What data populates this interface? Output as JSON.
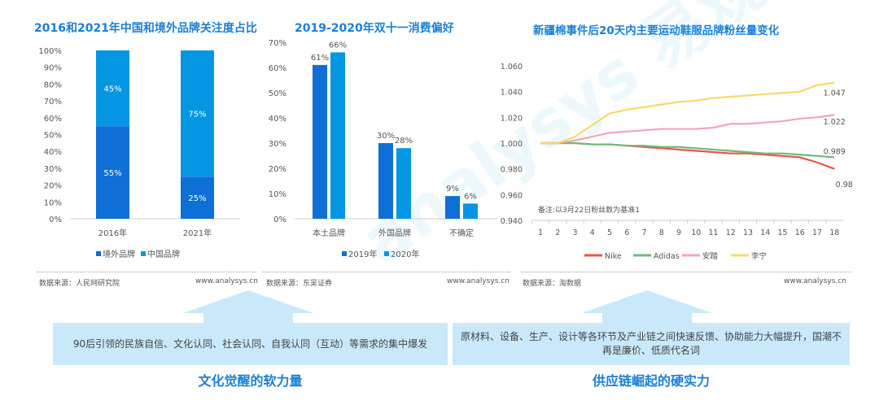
{
  "chart_data": [
    {
      "type": "bar",
      "stacked": true,
      "title": "2016和2021年中国和境外品牌关注度占比",
      "categories": [
        "2016年",
        "2021年"
      ],
      "series": [
        {
          "name": "境外品牌",
          "values": [
            55,
            25
          ],
          "color": "#0e6fd6"
        },
        {
          "name": "中国品牌",
          "values": [
            45,
            75
          ],
          "color": "#0496e2"
        }
      ],
      "yticks": [
        "0%",
        "10%",
        "20%",
        "30%",
        "40%",
        "50%",
        "60%",
        "70%",
        "80%",
        "90%",
        "100%"
      ],
      "ylim": [
        0,
        100
      ],
      "legend": "bottom",
      "data_labels": [
        [
          "55%",
          "25%"
        ],
        [
          "45%",
          "75%"
        ]
      ]
    },
    {
      "type": "bar",
      "title": "2019-2020年双十一消费偏好",
      "categories": [
        "本土品牌",
        "外国品牌",
        "不确定"
      ],
      "series": [
        {
          "name": "2019年",
          "values": [
            61,
            30,
            9
          ],
          "color": "#0e6fd6"
        },
        {
          "name": "2020年",
          "values": [
            66,
            28,
            6
          ],
          "color": "#0496e2"
        }
      ],
      "yticks": [
        "0%",
        "10%",
        "20%",
        "30%",
        "40%",
        "50%",
        "60%",
        "70%"
      ],
      "ylim": [
        0,
        70
      ],
      "legend": "bottom",
      "data_labels": [
        [
          "61%",
          "30%",
          "9%"
        ],
        [
          "66%",
          "28%",
          "6%"
        ]
      ]
    },
    {
      "type": "line",
      "title": "新疆棉事件后20天内主要运动鞋服品牌粉丝量变化",
      "x": [
        1,
        2,
        3,
        4,
        5,
        6,
        7,
        8,
        9,
        10,
        11,
        12,
        13,
        14,
        15,
        16,
        17,
        18
      ],
      "yticks": [
        "0.940",
        "0.960",
        "0.980",
        "1.000",
        "1.020",
        "1.040",
        "1.060"
      ],
      "ylim": [
        0.94,
        1.06
      ],
      "note": "备注:以3月22日粉丝数为基准1",
      "legend": "bottom",
      "series": [
        {
          "name": "Nike",
          "color": "#f0504a",
          "end_label": "0.98",
          "values": [
            1,
            1,
            1,
            0.999,
            0.999,
            0.998,
            0.997,
            0.996,
            0.995,
            0.994,
            0.993,
            0.992,
            0.992,
            0.991,
            0.99,
            0.989,
            0.985,
            0.98
          ]
        },
        {
          "name": "Adidas",
          "color": "#6dbb7b",
          "end_label": "0.989",
          "values": [
            1,
            1,
            1,
            0.999,
            0.999,
            0.998,
            0.998,
            0.997,
            0.997,
            0.996,
            0.995,
            0.994,
            0.993,
            0.992,
            0.992,
            0.991,
            0.99,
            0.989
          ]
        },
        {
          "name": "安踏",
          "color": "#f7a1c0",
          "end_label": "1.022",
          "values": [
            1,
            1,
            1.002,
            1.005,
            1.008,
            1.009,
            1.01,
            1.011,
            1.011,
            1.011,
            1.012,
            1.015,
            1.015,
            1.016,
            1.017,
            1.019,
            1.02,
            1.022
          ]
        },
        {
          "name": "李宁",
          "color": "#fad869",
          "end_label": "1.047",
          "values": [
            1,
            1,
            1.005,
            1.014,
            1.023,
            1.026,
            1.028,
            1.03,
            1.032,
            1.033,
            1.035,
            1.036,
            1.037,
            1.038,
            1.039,
            1.04,
            1.045,
            1.047
          ]
        }
      ]
    }
  ],
  "sources": [
    {
      "label": "数据来源：人民网研究院",
      "site": "www.analysys.cn"
    },
    {
      "label": "数据来源：东吴证券",
      "site": "www.analysys.cn"
    },
    {
      "label": "数据来源：淘数据",
      "site": "www.analysys.cn"
    }
  ],
  "boxes": [
    {
      "text": "90后引领的民族自信、文化认同、社会认同、自我认同（互动）等需求的集中爆发",
      "caption": "文化觉醒的软力量"
    },
    {
      "text": "原材料、设备、生产、设计等各环节及产业链之间快速反馈、协助能力大幅提升，国潮不再是廉价、低质代名词",
      "caption": "供应链崛起的硬实力"
    }
  ],
  "watermark": "analysys 易观分析"
}
